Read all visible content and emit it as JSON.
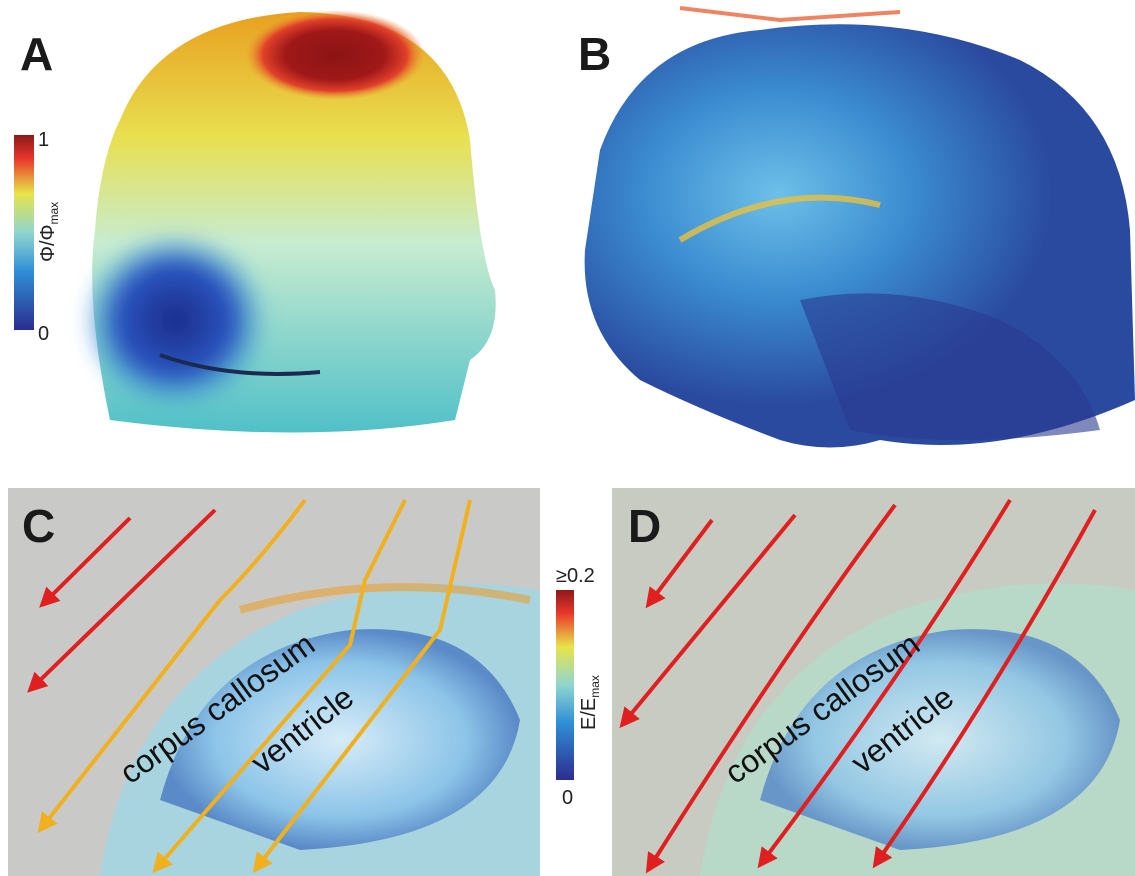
{
  "panels": [
    {
      "label": "A",
      "colorbar": {
        "max": "1",
        "min": "0",
        "title": "Φ/Φ",
        "title_sub": "max"
      }
    },
    {
      "label": "B"
    },
    {
      "label": "C",
      "colorbar": {
        "max": "≥0.2",
        "min": "0",
        "title": "E/E",
        "title_sub": "max"
      },
      "annotations": [
        "corpus callosum",
        "ventricle"
      ]
    },
    {
      "label": "D",
      "annotations": [
        "corpus callosum",
        "ventricle"
      ]
    }
  ]
}
